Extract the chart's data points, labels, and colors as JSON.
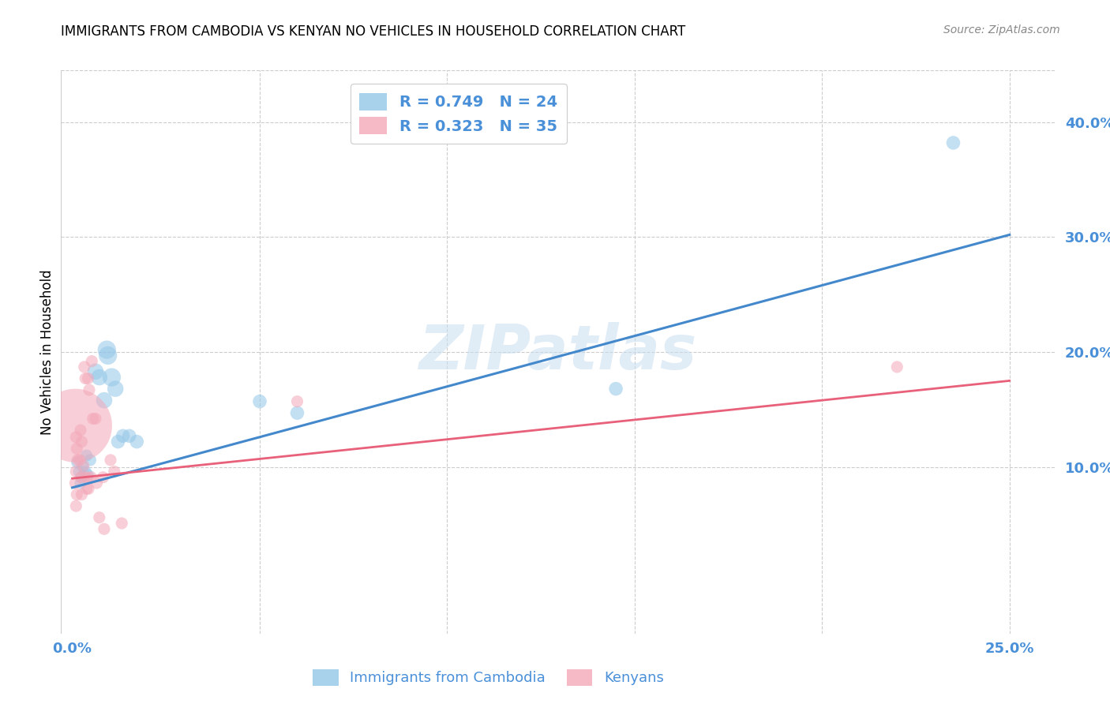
{
  "title": "IMMIGRANTS FROM CAMBODIA VS KENYAN NO VEHICLES IN HOUSEHOLD CORRELATION CHART",
  "source": "Source: ZipAtlas.com",
  "ylabel": "No Vehicles in Household",
  "xlim": [
    -0.003,
    0.262
  ],
  "ylim": [
    -0.045,
    0.445
  ],
  "cambodia_color": "#93c6e8",
  "kenya_color": "#f4a8b8",
  "line_cambodia_color": "#4488cc",
  "line_kenya_color": "#e8607a",
  "tick_color": "#4a90d9",
  "watermark": "ZIPatlas",
  "line_camb_x0": 0.0,
  "line_camb_y0": 0.082,
  "line_camb_x1": 0.25,
  "line_camb_y1": 0.302,
  "line_ken_x0": 0.0,
  "line_ken_y0": 0.09,
  "line_ken_x1": 0.25,
  "line_ken_y1": 0.175,
  "cambodia_points": [
    [
      0.0013,
      0.104
    ],
    [
      0.0018,
      0.096
    ],
    [
      0.0022,
      0.086
    ],
    [
      0.0025,
      0.091
    ],
    [
      0.0028,
      0.1
    ],
    [
      0.0035,
      0.096
    ],
    [
      0.0038,
      0.11
    ],
    [
      0.0042,
      0.093
    ],
    [
      0.0048,
      0.106
    ],
    [
      0.0062,
      0.183
    ],
    [
      0.0072,
      0.178
    ],
    [
      0.0085,
      0.158
    ],
    [
      0.0092,
      0.202
    ],
    [
      0.0095,
      0.197
    ],
    [
      0.0105,
      0.178
    ],
    [
      0.0115,
      0.168
    ],
    [
      0.0122,
      0.122
    ],
    [
      0.0135,
      0.127
    ],
    [
      0.0152,
      0.127
    ],
    [
      0.0172,
      0.122
    ],
    [
      0.05,
      0.157
    ],
    [
      0.06,
      0.147
    ],
    [
      0.145,
      0.168
    ],
    [
      0.235,
      0.382
    ]
  ],
  "cambodia_sizes": [
    120,
    120,
    120,
    120,
    120,
    120,
    120,
    120,
    120,
    220,
    220,
    220,
    280,
    280,
    280,
    220,
    160,
    160,
    160,
    160,
    160,
    160,
    160,
    160
  ],
  "kenya_points": [
    [
      0.0008,
      0.136
    ],
    [
      0.001,
      0.126
    ],
    [
      0.0012,
      0.116
    ],
    [
      0.0014,
      0.106
    ],
    [
      0.001,
      0.096
    ],
    [
      0.0008,
      0.086
    ],
    [
      0.0012,
      0.076
    ],
    [
      0.001,
      0.066
    ],
    [
      0.0022,
      0.132
    ],
    [
      0.0025,
      0.122
    ],
    [
      0.002,
      0.106
    ],
    [
      0.0023,
      0.091
    ],
    [
      0.0025,
      0.076
    ],
    [
      0.0032,
      0.187
    ],
    [
      0.0035,
      0.177
    ],
    [
      0.003,
      0.101
    ],
    [
      0.0033,
      0.091
    ],
    [
      0.0038,
      0.081
    ],
    [
      0.0042,
      0.177
    ],
    [
      0.0045,
      0.167
    ],
    [
      0.004,
      0.091
    ],
    [
      0.0043,
      0.081
    ],
    [
      0.0052,
      0.192
    ],
    [
      0.0055,
      0.142
    ],
    [
      0.005,
      0.091
    ],
    [
      0.0062,
      0.142
    ],
    [
      0.0065,
      0.086
    ],
    [
      0.0072,
      0.056
    ],
    [
      0.0082,
      0.091
    ],
    [
      0.0085,
      0.046
    ],
    [
      0.0102,
      0.106
    ],
    [
      0.0112,
      0.096
    ],
    [
      0.0132,
      0.051
    ],
    [
      0.06,
      0.157
    ],
    [
      0.22,
      0.187
    ]
  ],
  "kenya_sizes": [
    4500,
    120,
    120,
    120,
    120,
    120,
    120,
    120,
    120,
    120,
    120,
    120,
    120,
    120,
    120,
    120,
    120,
    120,
    120,
    120,
    120,
    120,
    120,
    120,
    120,
    120,
    120,
    120,
    120,
    120,
    120,
    120,
    120,
    120,
    120
  ]
}
